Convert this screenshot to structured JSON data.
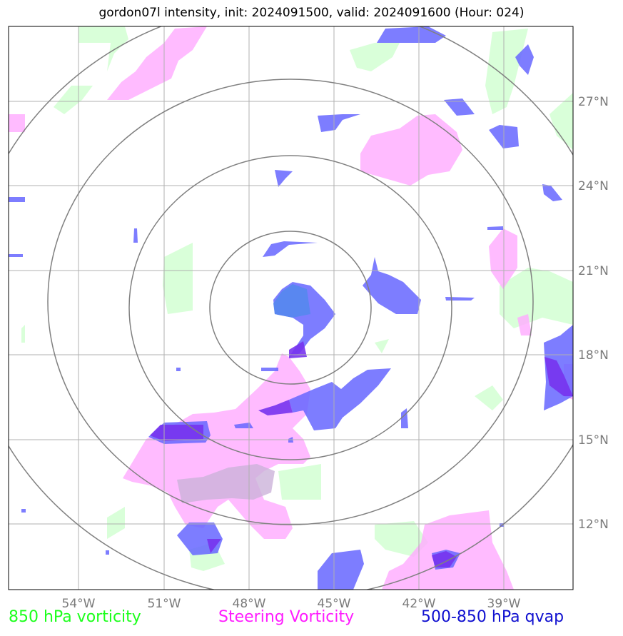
{
  "title": "gordon07l intensity, init: 2024091500, valid: 2024091600 (Hour: 024)",
  "axes": {
    "lon_labels": [
      "54°W",
      "51°W",
      "48°W",
      "45°W",
      "42°W",
      "39°W"
    ],
    "lat_labels": [
      "27°N",
      "24°N",
      "21°N",
      "18°N",
      "15°N",
      "12°N"
    ]
  },
  "legend": {
    "green": "850 hPa vorticity",
    "magenta": "Steering Vorticity",
    "blue": "500-850 hPa qvap"
  },
  "colors": {
    "green_fill": "#ccffcc",
    "magenta_fill": "#ffaaff",
    "blue_fill": "#6666ff",
    "gridline": "#b0b0b0",
    "range_ring": "#808080",
    "legend_green": "#1cff1c",
    "legend_magenta": "#ff1cff",
    "legend_blue": "#1010d0"
  },
  "map": {
    "storm_center": {
      "lon": -46.5,
      "lat": 20.3
    },
    "range_rings": 4
  }
}
